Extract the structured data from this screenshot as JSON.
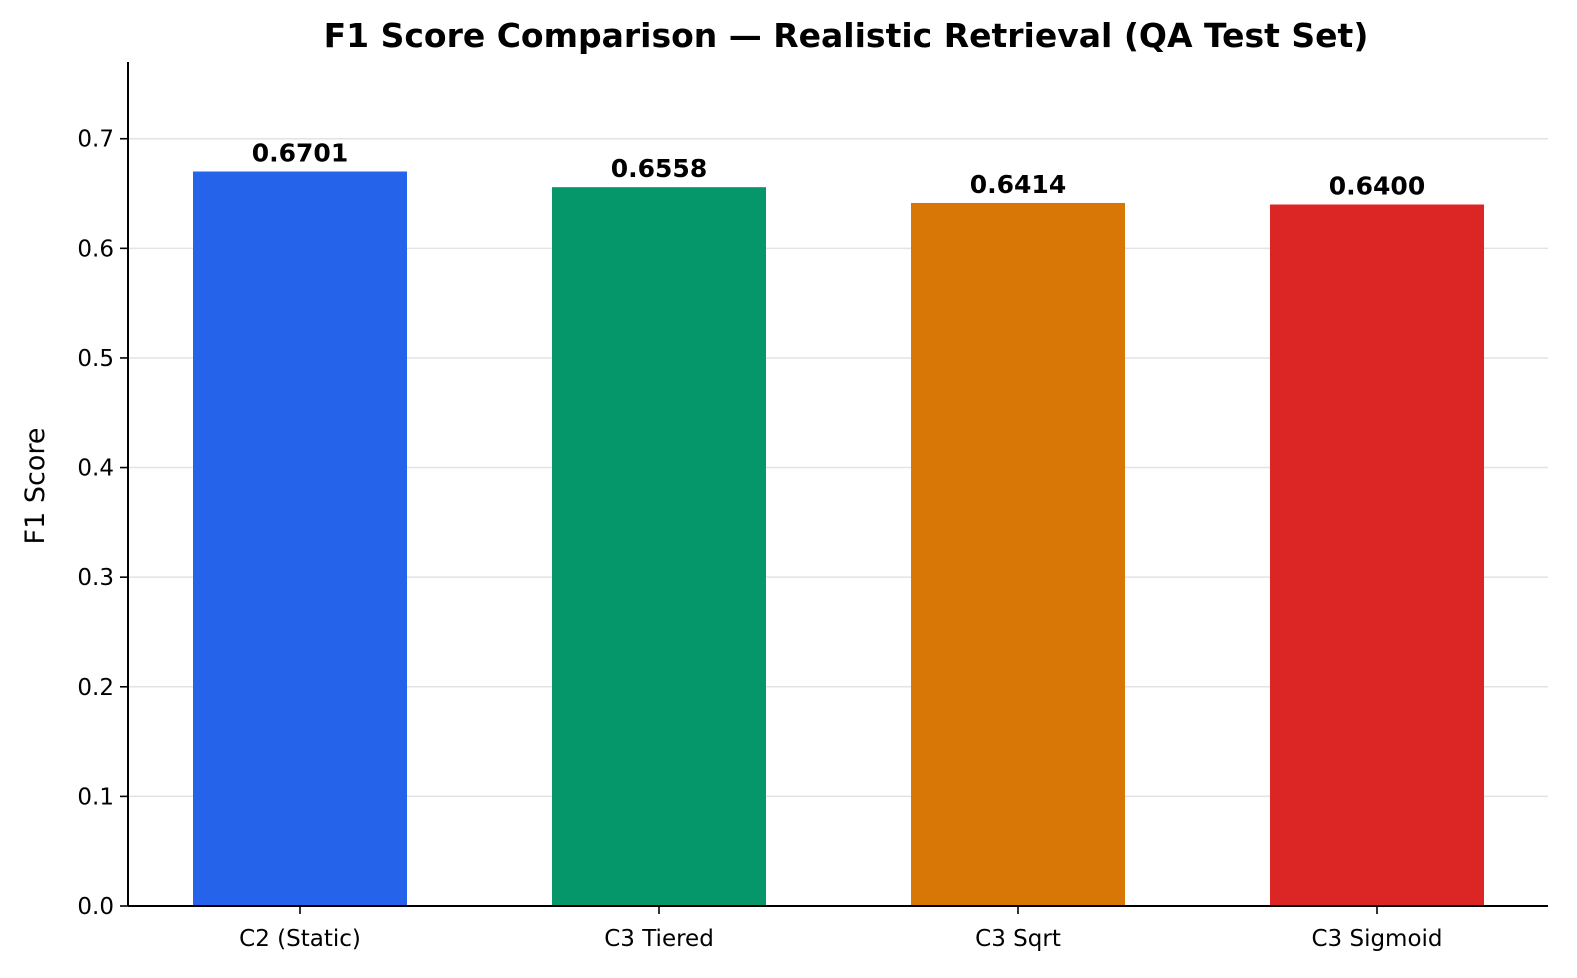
{
  "chart_data": {
    "type": "bar",
    "title": "F1 Score Comparison — Realistic Retrieval (QA Test Set)",
    "xlabel": "",
    "ylabel": "F1 Score",
    "categories": [
      "C2 (Static)",
      "C3 Tiered",
      "C3 Sqrt",
      "C3 Sigmoid"
    ],
    "values": [
      0.6701,
      0.6558,
      0.6414,
      0.64
    ],
    "value_labels": [
      "0.6701",
      "0.6558",
      "0.6414",
      "0.6400"
    ],
    "colors": [
      "#2563eb",
      "#059669",
      "#d97706",
      "#dc2626"
    ],
    "ylim": [
      0,
      0.77
    ],
    "yticks": [
      0.0,
      0.1,
      0.2,
      0.3,
      0.4,
      0.5,
      0.6,
      0.7
    ],
    "ytick_labels": [
      "0.0",
      "0.1",
      "0.2",
      "0.3",
      "0.4",
      "0.5",
      "0.6",
      "0.7"
    ],
    "grid": "horizontal",
    "legend": "none"
  }
}
